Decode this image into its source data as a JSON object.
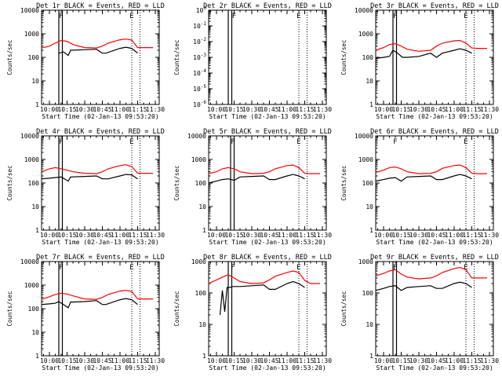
{
  "x_tick_labels": [
    "10:00",
    "10:15",
    "10:30",
    "10:45",
    "11:00",
    "11:15",
    "11:30"
  ],
  "xlabel": "Start Time (02-Jan-13 09:53:20)",
  "ylabel": "Counts/sec",
  "colors": {
    "events": "#000000",
    "lld": "#ff0000",
    "axes": "#000000",
    "background": "#ffffff"
  },
  "chart_data": [
    {
      "type": "line",
      "title": "Det 1r BLACK = Events, RED = LLD",
      "x_range": [
        "09:53:20",
        "11:33:20"
      ],
      "ylim": [
        1,
        10000
      ],
      "yscale": "log",
      "y_tick_labels": [
        "1",
        "10",
        "100",
        "1000",
        "10000"
      ],
      "markers": {
        "solid_lines": [
          "10:08",
          "10:11"
        ],
        "dotted_lines": [
          "10:08",
          "11:10",
          "11:17"
        ],
        "letters": [
          {
            "text": "F",
            "x": "10:10"
          },
          {
            "text": "E",
            "x": "11:10"
          }
        ]
      },
      "series": [
        {
          "x": [
            "09:53:20",
            "10:00",
            "10:05",
            "10:10",
            "10:15",
            "10:20",
            "10:30",
            "10:40",
            "10:45",
            "10:50",
            "11:00",
            "11:05",
            "11:10",
            "11:15",
            "11:20",
            "11:28"
          ],
          "y": [
            250,
            300,
            400,
            520,
            480,
            350,
            260,
            250,
            300,
            400,
            560,
            600,
            540,
            260,
            260,
            260
          ]
        },
        {
          "x": [
            "10:08",
            "10:10",
            "10:12",
            "10:16",
            "10:18",
            "10:30",
            "10:40",
            "10:45",
            "10:48",
            "11:00",
            "11:05",
            "11:10",
            "11:15"
          ],
          "y": [
            150,
            160,
            170,
            120,
            200,
            210,
            220,
            150,
            150,
            240,
            270,
            240,
            150
          ]
        }
      ]
    },
    {
      "type": "line",
      "title": "Det 2r BLACK = Events, RED = LLD",
      "x_range": [
        "09:53:20",
        "11:33:20"
      ],
      "ylim": [
        1e-06,
        1
      ],
      "yscale": "log",
      "y_tick_labels": [
        "10^-6",
        "10^-5",
        "10^-4",
        "10^-3",
        "10^-2",
        "10^-1",
        "10^0"
      ],
      "markers": {
        "solid_lines": [
          "10:10",
          "10:13"
        ],
        "dotted_lines": [
          "10:13",
          "11:10",
          "11:17"
        ],
        "letters": [
          {
            "text": "F",
            "x": "10:15"
          },
          {
            "text": "E",
            "x": "11:10"
          }
        ]
      },
      "series": []
    },
    {
      "type": "line",
      "title": "Det 3r BLACK = Events, RED = LLD",
      "x_range": [
        "09:53:20",
        "11:33:20"
      ],
      "ylim": [
        1,
        10000
      ],
      "yscale": "log",
      "y_tick_labels": [
        "1",
        "10",
        "100",
        "1000",
        "10000"
      ],
      "markers": {
        "solid_lines": [
          "10:08",
          "10:11"
        ],
        "dotted_lines": [
          "10:08",
          "11:10",
          "11:17"
        ],
        "letters": [
          {
            "text": "F",
            "x": "10:10"
          },
          {
            "text": "E",
            "x": "11:10"
          }
        ]
      },
      "series": [
        {
          "x": [
            "09:53:20",
            "10:00",
            "10:05",
            "10:10",
            "10:15",
            "10:20",
            "10:30",
            "10:40",
            "10:45",
            "10:50",
            "11:00",
            "11:05",
            "11:10",
            "11:15",
            "11:20",
            "11:28"
          ],
          "y": [
            200,
            260,
            350,
            380,
            300,
            220,
            180,
            200,
            300,
            400,
            500,
            520,
            400,
            250,
            240,
            240
          ]
        },
        {
          "x": [
            "09:53:20",
            "10:00",
            "10:05",
            "10:08",
            "10:12",
            "10:16",
            "10:20",
            "10:30",
            "10:40",
            "10:45",
            "10:50",
            "11:00",
            "11:05",
            "11:10",
            "11:15"
          ],
          "y": [
            90,
            100,
            110,
            200,
            150,
            100,
            100,
            110,
            150,
            100,
            150,
            200,
            230,
            200,
            150
          ]
        }
      ]
    },
    {
      "type": "line",
      "title": "Det 4r BLACK = Events, RED = LLD",
      "x_range": [
        "09:53:20",
        "11:33:20"
      ],
      "ylim": [
        1,
        10000
      ],
      "yscale": "log",
      "y_tick_labels": [
        "1",
        "10",
        "100",
        "1000",
        "10000"
      ],
      "markers": {
        "solid_lines": [
          "10:08",
          "10:11"
        ],
        "dotted_lines": [
          "10:08",
          "11:10",
          "11:17"
        ],
        "letters": [
          {
            "text": "F",
            "x": "10:10"
          },
          {
            "text": "E",
            "x": "11:10"
          }
        ]
      },
      "series": [
        {
          "x": [
            "09:53:20",
            "10:00",
            "10:05",
            "10:10",
            "10:15",
            "10:20",
            "10:30",
            "10:40",
            "10:45",
            "10:50",
            "11:00",
            "11:05",
            "11:10",
            "11:15",
            "11:20",
            "11:28"
          ],
          "y": [
            300,
            400,
            450,
            400,
            350,
            300,
            260,
            250,
            300,
            400,
            550,
            600,
            500,
            260,
            260,
            260
          ]
        },
        {
          "x": [
            "09:53:20",
            "10:00",
            "10:05",
            "10:10",
            "10:16",
            "10:18",
            "10:30",
            "10:40",
            "10:45",
            "10:50",
            "11:00",
            "11:05",
            "11:10",
            "11:15"
          ],
          "y": [
            150,
            160,
            170,
            180,
            120,
            180,
            190,
            200,
            150,
            150,
            200,
            230,
            220,
            150
          ]
        }
      ]
    },
    {
      "type": "line",
      "title": "Det 5r BLACK = Events, RED = LLD",
      "x_range": [
        "09:53:20",
        "11:33:20"
      ],
      "ylim": [
        1,
        10000
      ],
      "yscale": "log",
      "y_tick_labels": [
        "1",
        "10",
        "100",
        "1000",
        "10000"
      ],
      "markers": {
        "solid_lines": [
          "10:12",
          "10:15"
        ],
        "dotted_lines": [
          "10:12",
          "11:10",
          "11:17"
        ],
        "letters": [
          {
            "text": "F",
            "x": "10:14"
          },
          {
            "text": "E",
            "x": "11:10"
          }
        ]
      },
      "series": [
        {
          "x": [
            "09:53:20",
            "10:00",
            "10:05",
            "10:10",
            "10:15",
            "10:20",
            "10:30",
            "10:40",
            "10:45",
            "10:50",
            "11:00",
            "11:05",
            "11:10",
            "11:15",
            "11:20",
            "11:28"
          ],
          "y": [
            250,
            300,
            400,
            450,
            400,
            300,
            250,
            260,
            300,
            400,
            550,
            580,
            450,
            260,
            250,
            250
          ]
        },
        {
          "x": [
            "09:53:20",
            "10:00",
            "10:05",
            "10:10",
            "10:15",
            "10:20",
            "10:30",
            "10:40",
            "10:45",
            "10:50",
            "11:00",
            "11:05",
            "11:10",
            "11:15"
          ],
          "y": [
            100,
            120,
            140,
            150,
            130,
            180,
            190,
            200,
            140,
            140,
            200,
            230,
            200,
            150
          ]
        }
      ]
    },
    {
      "type": "line",
      "title": "Det 6r BLACK = Events, RED = LLD",
      "x_range": [
        "09:53:20",
        "11:33:20"
      ],
      "ylim": [
        1,
        10000
      ],
      "yscale": "log",
      "y_tick_labels": [
        "1",
        "10",
        "100",
        "1000",
        "10000"
      ],
      "markers": {
        "solid_lines": [],
        "dotted_lines": [
          "11:10",
          "11:17"
        ],
        "letters": [
          {
            "text": "F",
            "x": "10:10"
          },
          {
            "text": "E",
            "x": "11:10"
          }
        ]
      },
      "series": [
        {
          "x": [
            "09:53:20",
            "10:00",
            "10:05",
            "10:10",
            "10:15",
            "10:20",
            "10:30",
            "10:40",
            "10:45",
            "10:50",
            "11:00",
            "11:05",
            "11:10",
            "11:15",
            "11:20",
            "11:28"
          ],
          "y": [
            280,
            350,
            450,
            480,
            400,
            300,
            250,
            260,
            300,
            420,
            550,
            580,
            450,
            260,
            250,
            250
          ]
        },
        {
          "x": [
            "09:53:20",
            "10:00",
            "10:05",
            "10:10",
            "10:15",
            "10:20",
            "10:30",
            "10:40",
            "10:45",
            "10:50",
            "11:00",
            "11:05",
            "11:10",
            "11:15"
          ],
          "y": [
            120,
            140,
            160,
            170,
            120,
            180,
            190,
            200,
            140,
            140,
            200,
            230,
            200,
            150
          ]
        }
      ]
    },
    {
      "type": "line",
      "title": "Det 7r BLACK = Events, RED = LLD",
      "x_range": [
        "09:53:20",
        "11:33:20"
      ],
      "ylim": [
        1,
        10000
      ],
      "yscale": "log",
      "y_tick_labels": [
        "1",
        "10",
        "100",
        "1000",
        "10000"
      ],
      "markers": {
        "solid_lines": [
          "10:08",
          "10:11"
        ],
        "dotted_lines": [
          "10:08",
          "11:10",
          "11:17"
        ],
        "letters": [
          {
            "text": "F",
            "x": "10:10"
          },
          {
            "text": "E",
            "x": "11:10"
          }
        ]
      },
      "series": [
        {
          "x": [
            "09:53:20",
            "10:00",
            "10:05",
            "10:10",
            "10:15",
            "10:20",
            "10:30",
            "10:40",
            "10:45",
            "10:50",
            "11:00",
            "11:05",
            "11:10",
            "11:15",
            "11:20",
            "11:28"
          ],
          "y": [
            250,
            320,
            400,
            450,
            420,
            350,
            260,
            250,
            300,
            400,
            560,
            600,
            540,
            260,
            260,
            260
          ]
        },
        {
          "x": [
            "09:53:20",
            "10:00",
            "10:05",
            "10:08",
            "10:12",
            "10:16",
            "10:18",
            "10:30",
            "10:40",
            "10:45",
            "10:48",
            "11:00",
            "11:05",
            "11:10",
            "11:15"
          ],
          "y": [
            150,
            160,
            170,
            200,
            150,
            110,
            190,
            200,
            220,
            150,
            150,
            240,
            270,
            240,
            150
          ]
        }
      ]
    },
    {
      "type": "line",
      "title": "Det 8r BLACK = Events, RED = LLD",
      "x_range": [
        "09:53:20",
        "11:33:20"
      ],
      "ylim": [
        1,
        1000
      ],
      "yscale": "log",
      "y_tick_labels": [
        "1",
        "10",
        "100",
        "1000"
      ],
      "markers": {
        "solid_lines": [
          "10:10",
          "10:13"
        ],
        "dotted_lines": [
          "10:13",
          "11:10",
          "11:17"
        ],
        "letters": [
          {
            "text": "F",
            "x": "10:14"
          },
          {
            "text": "E",
            "x": "11:10"
          }
        ]
      },
      "series": [
        {
          "x": [
            "09:53:20",
            "10:00",
            "10:05",
            "10:10",
            "10:15",
            "10:20",
            "10:30",
            "10:40",
            "10:45",
            "10:50",
            "11:00",
            "11:05",
            "11:10",
            "11:15",
            "11:20",
            "11:28"
          ],
          "y": [
            200,
            260,
            320,
            380,
            300,
            230,
            200,
            210,
            260,
            340,
            450,
            500,
            450,
            250,
            200,
            200
          ]
        },
        {
          "x": [
            "10:03",
            "10:05",
            "10:07",
            "10:09",
            "10:11",
            "10:14",
            "10:20",
            "10:30",
            "10:40",
            "10:45",
            "10:50",
            "11:00",
            "11:05",
            "11:10",
            "11:15"
          ],
          "y": [
            20,
            120,
            25,
            150,
            150,
            160,
            160,
            170,
            180,
            130,
            130,
            200,
            230,
            200,
            150
          ]
        }
      ]
    },
    {
      "type": "line",
      "title": "Det 9r BLACK = Events, RED = LLD",
      "x_range": [
        "09:53:20",
        "11:33:20"
      ],
      "ylim": [
        1,
        1000
      ],
      "yscale": "log",
      "y_tick_labels": [
        "1",
        "10",
        "100",
        "1000"
      ],
      "markers": {
        "solid_lines": [
          "10:08",
          "10:11"
        ],
        "dotted_lines": [
          "10:08",
          "11:10",
          "11:17"
        ],
        "letters": [
          {
            "text": "F",
            "x": "10:10"
          },
          {
            "text": "E",
            "x": "11:10"
          }
        ]
      },
      "series": [
        {
          "x": [
            "09:53:20",
            "10:00",
            "10:05",
            "10:10",
            "10:15",
            "10:20",
            "10:30",
            "10:40",
            "10:45",
            "10:50",
            "11:00",
            "11:05",
            "11:10",
            "11:15",
            "11:20",
            "11:28"
          ],
          "y": [
            350,
            420,
            500,
            550,
            400,
            320,
            280,
            300,
            350,
            450,
            600,
            650,
            550,
            300,
            300,
            300
          ]
        },
        {
          "x": [
            "09:53:20",
            "10:00",
            "10:05",
            "10:10",
            "10:15",
            "10:20",
            "10:30",
            "10:40",
            "10:45",
            "10:50",
            "11:00",
            "11:05",
            "11:10",
            "11:15"
          ],
          "y": [
            120,
            140,
            160,
            170,
            120,
            150,
            160,
            170,
            140,
            140,
            200,
            220,
            200,
            150
          ]
        }
      ]
    }
  ]
}
